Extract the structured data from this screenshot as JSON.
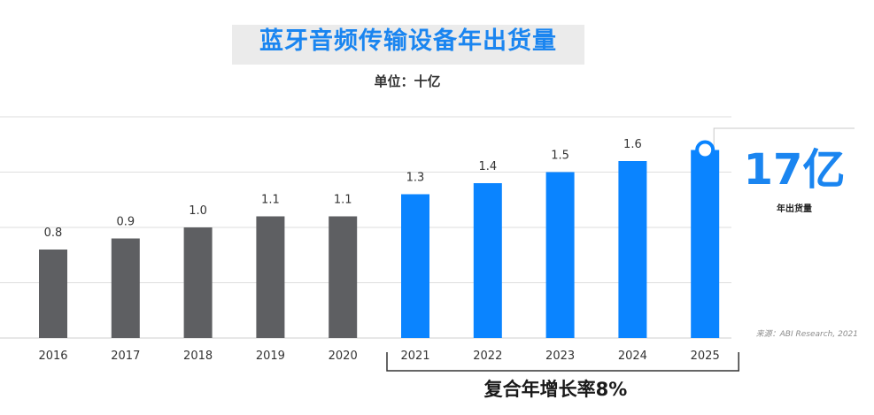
{
  "header": {
    "title": "蓝牙音频传输设备年出货量",
    "subtitle": "单位：十亿"
  },
  "annotation": {
    "value": "17亿",
    "label": "年出货量"
  },
  "source": "来源：ABI Research, 2021",
  "cagr_label": "复合年增长率8%",
  "colors": {
    "historical": "#5e5f62",
    "forecast": "#0a84ff",
    "grid": "#dedede",
    "text": "#333333"
  },
  "chart_data": {
    "type": "bar",
    "title": "蓝牙音频传输设备年出货量",
    "ylabel": "单位：十亿",
    "ylim": [
      0,
      2.0
    ],
    "categories": [
      "2016",
      "2017",
      "2018",
      "2019",
      "2020",
      "2021",
      "2022",
      "2023",
      "2024",
      "2025"
    ],
    "values": [
      0.8,
      0.9,
      1.0,
      1.1,
      1.1,
      1.3,
      1.4,
      1.5,
      1.6,
      1.7
    ],
    "value_labels": [
      "0.8",
      "0.9",
      "1.0",
      "1.1",
      "1.1",
      "1.3",
      "1.4",
      "1.5",
      "1.6",
      ""
    ],
    "groups": [
      "historical",
      "historical",
      "historical",
      "historical",
      "historical",
      "forecast",
      "forecast",
      "forecast",
      "forecast",
      "forecast"
    ]
  }
}
